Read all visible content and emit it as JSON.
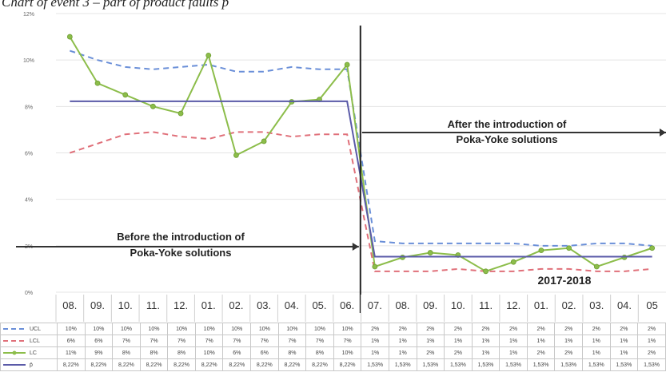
{
  "caption": "Chart of event 3 – part of product faults p",
  "chart_data": {
    "type": "line",
    "categories": [
      "08.",
      "09.",
      "10.",
      "11.",
      "12.",
      "01.",
      "02.",
      "03.",
      "04.",
      "05.",
      "06.",
      "07.",
      "08.",
      "09.",
      "10.",
      "11.",
      "12.",
      "01.",
      "02.",
      "03.",
      "04.",
      "05"
    ],
    "y_ticks": [
      "0%",
      "2%",
      "4%",
      "6%",
      "8%",
      "10%",
      "12%"
    ],
    "ylim": [
      0,
      12
    ],
    "grid": true,
    "series": [
      {
        "name": "UCL",
        "color": "#6a8fd8",
        "style": "dashed",
        "values": [
          10.4,
          10.0,
          9.7,
          9.6,
          9.7,
          9.8,
          9.5,
          9.5,
          9.7,
          9.6,
          9.6,
          2.2,
          2.1,
          2.1,
          2.1,
          2.1,
          2.1,
          2.0,
          2.0,
          2.1,
          2.1,
          2.0
        ],
        "table": [
          "10%",
          "10%",
          "10%",
          "10%",
          "10%",
          "10%",
          "10%",
          "10%",
          "10%",
          "10%",
          "10%",
          "2%",
          "2%",
          "2%",
          "2%",
          "2%",
          "2%",
          "2%",
          "2%",
          "2%",
          "2%",
          "2%"
        ]
      },
      {
        "name": "LCL",
        "color": "#e0707a",
        "style": "dashed",
        "values": [
          6.0,
          6.4,
          6.8,
          6.9,
          6.7,
          6.6,
          6.9,
          6.9,
          6.7,
          6.8,
          6.8,
          0.9,
          0.9,
          0.9,
          1.0,
          0.9,
          0.9,
          1.0,
          1.0,
          0.9,
          0.9,
          1.0
        ],
        "table": [
          "6%",
          "6%",
          "7%",
          "7%",
          "7%",
          "7%",
          "7%",
          "7%",
          "7%",
          "7%",
          "7%",
          "1%",
          "1%",
          "1%",
          "1%",
          "1%",
          "1%",
          "1%",
          "1%",
          "1%",
          "1%",
          "1%"
        ]
      },
      {
        "name": "LC",
        "color": "#8cbd4a",
        "style": "marker",
        "values": [
          11.0,
          9.0,
          8.5,
          8.0,
          7.7,
          10.2,
          5.9,
          6.5,
          8.2,
          8.3,
          9.8,
          1.1,
          1.5,
          1.7,
          1.6,
          0.9,
          1.3,
          1.8,
          1.9,
          1.1,
          1.5,
          1.9
        ],
        "table": [
          "11%",
          "9%",
          "8%",
          "8%",
          "8%",
          "10%",
          "6%",
          "6%",
          "8%",
          "8%",
          "10%",
          "1%",
          "1%",
          "2%",
          "2%",
          "1%",
          "1%",
          "2%",
          "2%",
          "1%",
          "1%",
          "2%"
        ]
      },
      {
        "name": "p̄",
        "color": "#5a5aa8",
        "style": "solid",
        "values": [
          8.22,
          8.22,
          8.22,
          8.22,
          8.22,
          8.22,
          8.22,
          8.22,
          8.22,
          8.22,
          8.22,
          1.53,
          1.53,
          1.53,
          1.53,
          1.53,
          1.53,
          1.53,
          1.53,
          1.53,
          1.53,
          1.53
        ],
        "table": [
          "8,22%",
          "8,22%",
          "8,22%",
          "8,22%",
          "8,22%",
          "8,22%",
          "8,22%",
          "8,22%",
          "8,22%",
          "8,22%",
          "8,22%",
          "1,53%",
          "1,53%",
          "1,53%",
          "1,53%",
          "1,53%",
          "1,53%",
          "1,53%",
          "1,53%",
          "1,53%",
          "1,53%",
          "1,53%"
        ]
      }
    ],
    "annotations": {
      "before": [
        "Before the introduction of",
        "Poka-Yoke solutions"
      ],
      "after": [
        "After the introduction of",
        "Poka-Yoke solutions"
      ],
      "period": "2017-2018"
    }
  }
}
